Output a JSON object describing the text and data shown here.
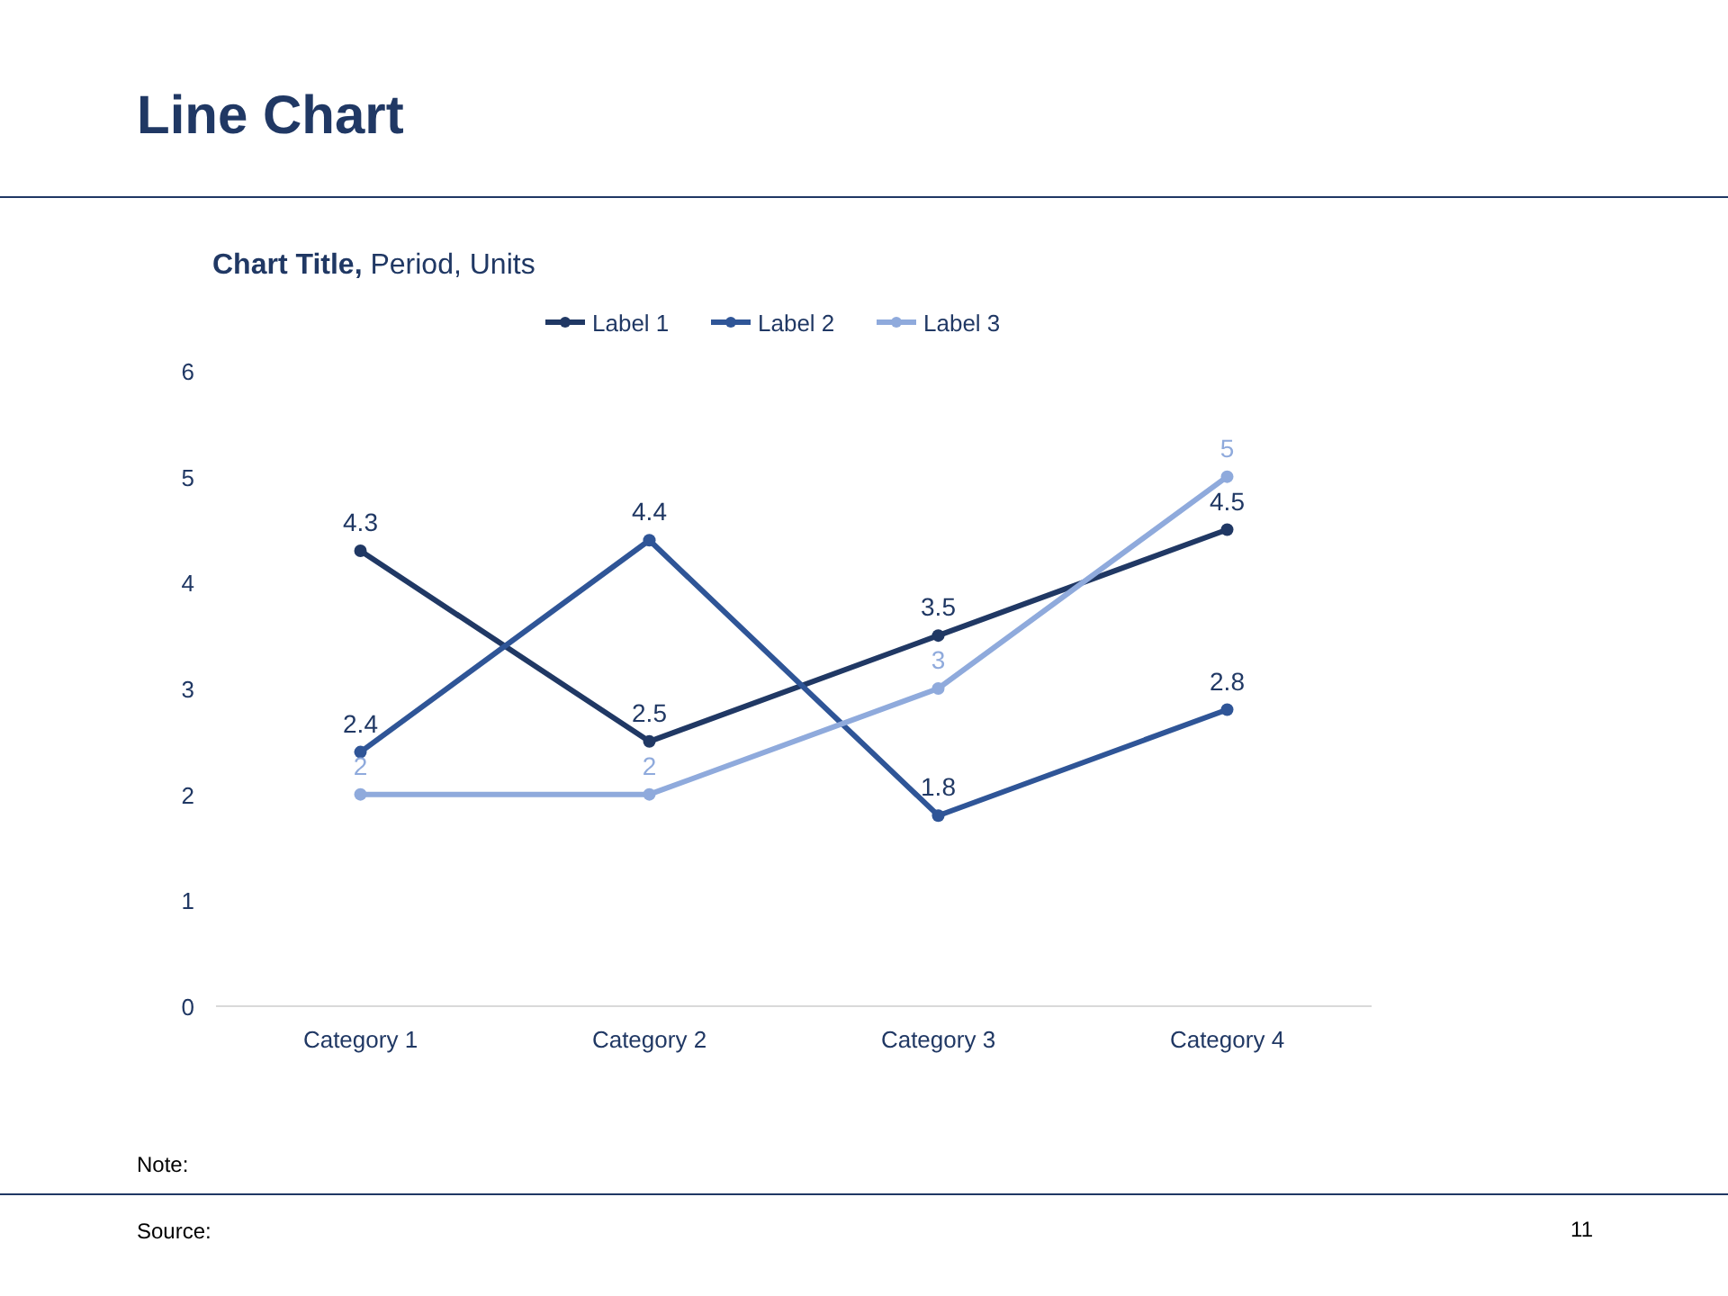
{
  "chart_data": {
    "type": "line",
    "title": "Line Chart",
    "subtitle": "Chart Title, Period, Units",
    "categories": [
      "Category 1",
      "Category 2",
      "Category 3",
      "Category 4"
    ],
    "series": [
      {
        "name": "Label 1",
        "color": "#203864",
        "values": [
          4.3,
          2.5,
          3.5,
          4.5
        ]
      },
      {
        "name": "Label 2",
        "color": "#2f5597",
        "values": [
          2.4,
          4.4,
          1.8,
          2.8
        ]
      },
      {
        "name": "Label 3",
        "color": "#8faadc",
        "values": [
          2,
          2,
          3,
          5
        ]
      }
    ],
    "ylim": [
      0,
      6
    ],
    "yticks": [
      0,
      1,
      2,
      3,
      4,
      5,
      6
    ],
    "grid": false,
    "legend": "top",
    "marker": "circle",
    "line_style": "solid",
    "data_labels": true,
    "annotations": [
      "Note:",
      "Source:",
      "11"
    ]
  }
}
